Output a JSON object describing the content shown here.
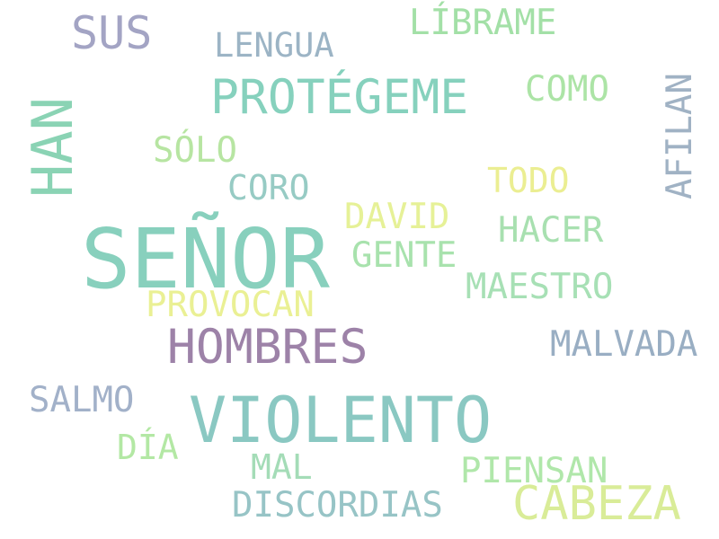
{
  "words": [
    {
      "text": "SEÑOR",
      "color": "#88d0bd"
    },
    {
      "text": "VIOLENTO",
      "color": "#8ac8c2"
    },
    {
      "text": "PROTÉGEME",
      "color": "#86d1bd"
    },
    {
      "text": "HAN",
      "color": "#8ad3b4"
    },
    {
      "text": "HOMBRES",
      "color": "#9d82a8"
    },
    {
      "text": "CABEZA",
      "color": "#d9ec98"
    },
    {
      "text": "SUS",
      "color": "#a3a4c4"
    },
    {
      "text": "LÍBRAME",
      "color": "#a3e0a7"
    },
    {
      "text": "AFILAN",
      "color": "#a0b2c4"
    },
    {
      "text": "LENGUA",
      "color": "#9cb4c5"
    },
    {
      "text": "MALVADA",
      "color": "#99aec3"
    },
    {
      "text": "CORO",
      "color": "#97cbc4"
    },
    {
      "text": "COMO",
      "color": "#ace4a6"
    },
    {
      "text": "SÓLO",
      "color": "#b7e5a2"
    },
    {
      "text": "TODO",
      "color": "#ebee92"
    },
    {
      "text": "DAVID",
      "color": "#e6f197"
    },
    {
      "text": "HACER",
      "color": "#a8e0b0"
    },
    {
      "text": "GENTE",
      "color": "#a8e2ad"
    },
    {
      "text": "MAESTRO",
      "color": "#a7e0b5"
    },
    {
      "text": "PROVOCAN",
      "color": "#eaf094"
    },
    {
      "text": "SALMO",
      "color": "#a2b1c9"
    },
    {
      "text": "DÍA",
      "color": "#b3e8a4"
    },
    {
      "text": "MAL",
      "color": "#a4dcb7"
    },
    {
      "text": "PIENSAN",
      "color": "#b0e7aa"
    },
    {
      "text": "DISCORDIAS",
      "color": "#97c4c6"
    }
  ]
}
